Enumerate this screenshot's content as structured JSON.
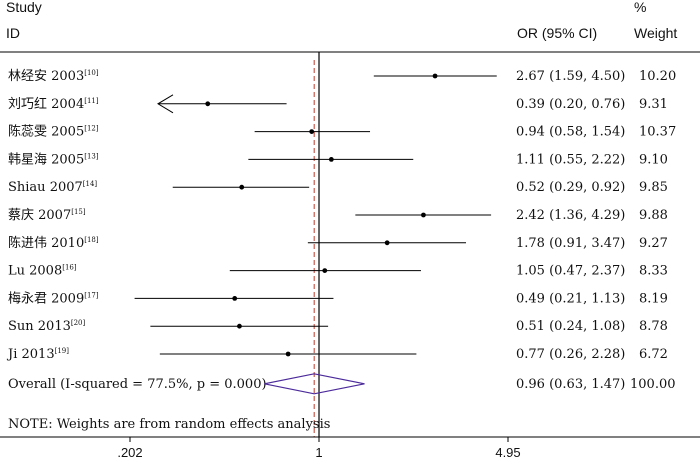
{
  "header": {
    "col_study_line1": "Study",
    "col_study_line2": "ID",
    "col_or": "OR (95% CI)",
    "col_weight_line1": "%",
    "col_weight_line2": "Weight"
  },
  "note": "NOTE: Weights are from random effects analysis",
  "colors": {
    "line": "#000000",
    "null_line": "#000000",
    "overall_line": "#c0392b",
    "diamond": "#4b2a9a"
  },
  "chart_data": {
    "type": "forest",
    "x_scale": "log",
    "x_ticks": [
      {
        "value": 0.202,
        "label": ".202"
      },
      {
        "value": 1,
        "label": "1"
      },
      {
        "value": 4.95,
        "label": "4.95"
      }
    ],
    "null_value": 1,
    "studies": [
      {
        "name": "林经安 2003",
        "ref": "[10]",
        "or": 2.67,
        "lo": 1.59,
        "hi": 4.5,
        "ci_text": "2.67 (1.59, 4.50)",
        "weight": "10.20"
      },
      {
        "name": "刘巧红 2004",
        "ref": "[11]",
        "or": 0.39,
        "lo": 0.2,
        "hi": 0.76,
        "ci_text": "0.39 (0.20, 0.76)",
        "weight": "9.31",
        "arrow_left": true
      },
      {
        "name": "陈蕊雯 2005",
        "ref": "[12]",
        "or": 0.94,
        "lo": 0.58,
        "hi": 1.54,
        "ci_text": "0.94 (0.58, 1.54)",
        "weight": "10.37"
      },
      {
        "name": "韩星海 2005",
        "ref": "[13]",
        "or": 1.11,
        "lo": 0.55,
        "hi": 2.22,
        "ci_text": "1.11 (0.55, 2.22)",
        "weight": "9.10"
      },
      {
        "name": "Shiau 2007",
        "ref": "[14]",
        "or": 0.52,
        "lo": 0.29,
        "hi": 0.92,
        "ci_text": "0.52 (0.29, 0.92)",
        "weight": "9.85"
      },
      {
        "name": "蔡庆 2007",
        "ref": "[15]",
        "or": 2.42,
        "lo": 1.36,
        "hi": 4.29,
        "ci_text": "2.42 (1.36, 4.29)",
        "weight": "9.88"
      },
      {
        "name": "陈进伟 2010",
        "ref": "[18]",
        "or": 1.78,
        "lo": 0.91,
        "hi": 3.47,
        "ci_text": "1.78 (0.91, 3.47)",
        "weight": "9.27"
      },
      {
        "name": "Lu 2008",
        "ref": "[16]",
        "or": 1.05,
        "lo": 0.47,
        "hi": 2.37,
        "ci_text": "1.05 (0.47, 2.37)",
        "weight": "8.33"
      },
      {
        "name": "梅永君 2009",
        "ref": "[17]",
        "or": 0.49,
        "lo": 0.21,
        "hi": 1.13,
        "ci_text": "0.49 (0.21, 1.13)",
        "weight": "8.19"
      },
      {
        "name": "Sun 2013",
        "ref": "[20]",
        "or": 0.51,
        "lo": 0.24,
        "hi": 1.08,
        "ci_text": "0.51 (0.24, 1.08)",
        "weight": "8.78"
      },
      {
        "name": "Ji 2013",
        "ref": "[19]",
        "or": 0.77,
        "lo": 0.26,
        "hi": 2.28,
        "ci_text": "0.77 (0.26, 2.28)",
        "weight": "6.72"
      }
    ],
    "overall": {
      "label": "Overall  (I-squared = 77.5%, p = 0.000)",
      "or": 0.96,
      "lo": 0.63,
      "hi": 1.47,
      "ci_text": "0.96 (0.63, 1.47)",
      "weight": "100.00"
    }
  }
}
